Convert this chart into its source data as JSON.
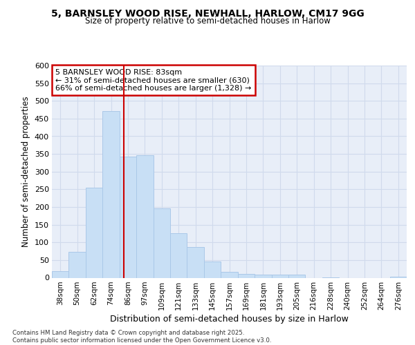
{
  "title1": "5, BARNSLEY WOOD RISE, NEWHALL, HARLOW, CM17 9GG",
  "title2": "Size of property relative to semi-detached houses in Harlow",
  "xlabel": "Distribution of semi-detached houses by size in Harlow",
  "ylabel": "Number of semi-detached properties",
  "footer1": "Contains HM Land Registry data © Crown copyright and database right 2025.",
  "footer2": "Contains public sector information licensed under the Open Government Licence v3.0.",
  "annotation_title": "5 BARNSLEY WOOD RISE: 83sqm",
  "annotation_line1": "← 31% of semi-detached houses are smaller (630)",
  "annotation_line2": "66% of semi-detached houses are larger (1,328) →",
  "bar_edge_color": "#aac8e8",
  "bar_face_color": "#c8dff5",
  "vline_color": "#cc0000",
  "categories": [
    "38sqm",
    "50sqm",
    "62sqm",
    "74sqm",
    "86sqm",
    "97sqm",
    "109sqm",
    "121sqm",
    "133sqm",
    "145sqm",
    "157sqm",
    "169sqm",
    "181sqm",
    "193sqm",
    "205sqm",
    "216sqm",
    "228sqm",
    "240sqm",
    "252sqm",
    "264sqm",
    "276sqm"
  ],
  "values": [
    18,
    73,
    255,
    472,
    343,
    347,
    197,
    126,
    87,
    46,
    16,
    10,
    8,
    8,
    9,
    0,
    1,
    0,
    0,
    0,
    3
  ],
  "ylim": [
    0,
    600
  ],
  "yticks": [
    0,
    50,
    100,
    150,
    200,
    250,
    300,
    350,
    400,
    450,
    500,
    550,
    600
  ],
  "grid_color": "#d0daec",
  "bg_color": "#e8eef8",
  "vline_index": 3.75
}
